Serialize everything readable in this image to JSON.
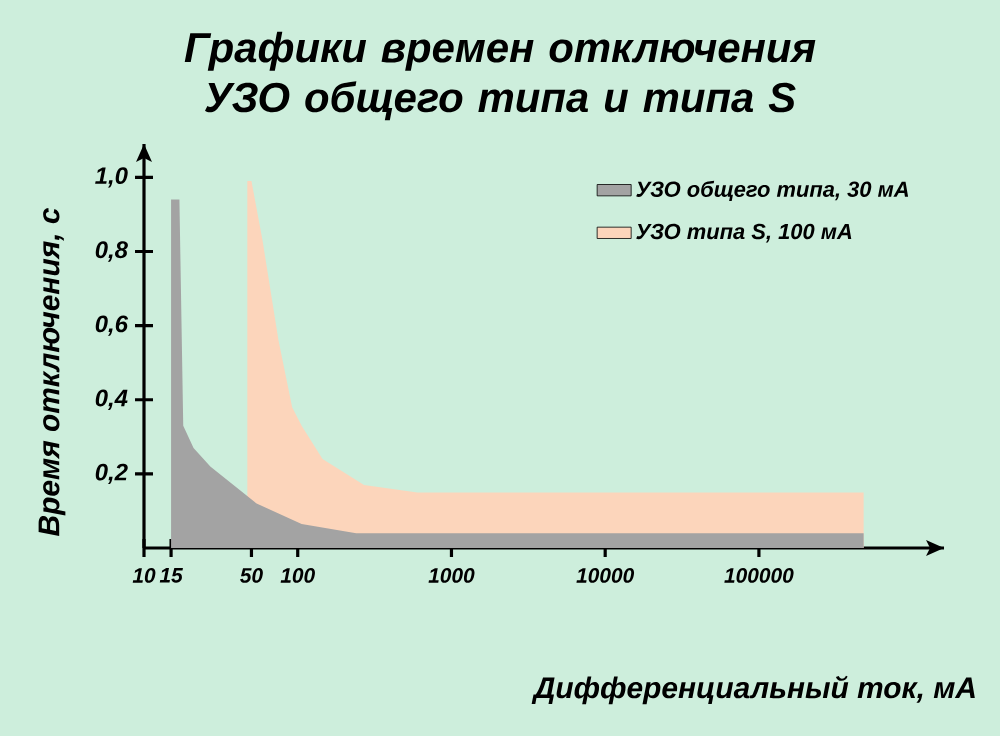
{
  "chart_data": {
    "type": "area",
    "title": "Графики времен отключения\nУЗО общего типа и типа S",
    "xlabel": "Дифференциальный ток, мА",
    "ylabel": "Время отключения, с",
    "log": "x",
    "xlim": [
      10,
      1600000
    ],
    "ylim": [
      0,
      1.09
    ],
    "xticks": [
      {
        "value": 10,
        "label": "10"
      },
      15,
      50,
      100,
      1000,
      10000,
      100000
    ],
    "yticks": [
      {
        "value": 0.2,
        "label": "0,2"
      },
      {
        "value": 0.4,
        "label": "0,4"
      },
      {
        "value": 0.6,
        "label": "0,6"
      },
      {
        "value": 0.8,
        "label": "0,8"
      },
      {
        "value": 1.0,
        "label": "1,0"
      }
    ],
    "grid": false,
    "legend": "top right",
    "series": [
      {
        "name": "УЗО типа S, 100 мА",
        "color": "#fcd5bb",
        "x": [
          47,
          47,
          50,
          59,
          75,
          92,
          106,
          145,
          270,
          600,
          480000,
          480000
        ],
        "values": [
          0,
          0.99,
          0.99,
          0.83,
          0.56,
          0.38,
          0.33,
          0.24,
          0.17,
          0.15,
          0.15,
          0
        ]
      },
      {
        "name": "УЗО общего типа, 30 мА",
        "color": "#a3a3a3",
        "x": [
          15,
          15,
          17,
          18,
          21,
          27,
          54,
          106,
          240,
          480000,
          480000
        ],
        "values": [
          0,
          0.94,
          0.94,
          0.33,
          0.27,
          0.22,
          0.12,
          0.065,
          0.04,
          0.04,
          0
        ]
      }
    ]
  }
}
